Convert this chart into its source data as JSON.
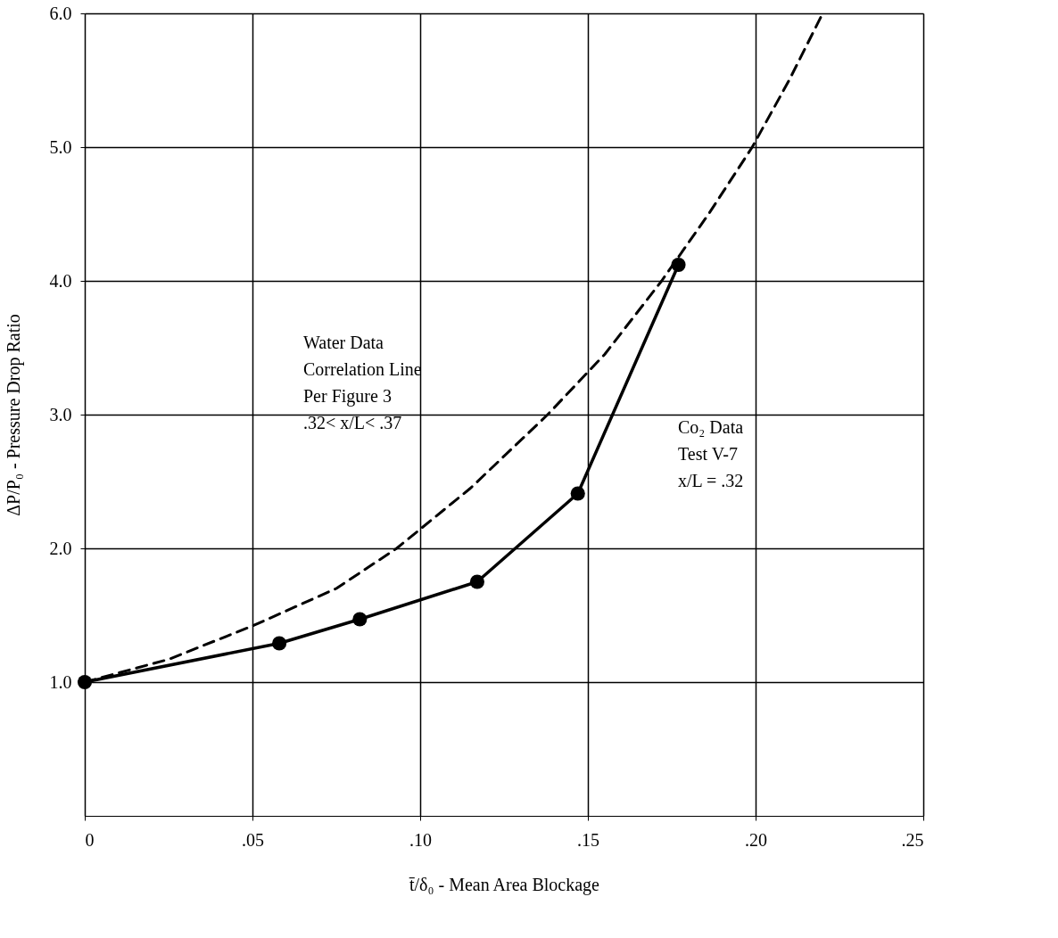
{
  "chart_data": {
    "type": "line",
    "xlabel": "t̄/δ₀ - Mean Area Blockage",
    "ylabel": "ΔP/P₀ - Pressure Drop Ratio",
    "xlim": [
      0,
      0.25
    ],
    "xticks": [
      0,
      {
        "value": 0.05,
        "label": ".05"
      },
      {
        "value": 0.1,
        "label": ".10"
      },
      {
        "value": 0.15,
        "label": ".15"
      },
      {
        "value": 0.2,
        "label": ".20"
      },
      {
        "value": 0.25,
        "label": ".25"
      }
    ],
    "ylim": [
      0,
      6
    ],
    "yticks": [
      {
        "value": 1,
        "label": "1.0"
      },
      {
        "value": 2,
        "label": "2.0"
      },
      {
        "value": 3,
        "label": "3.0"
      },
      {
        "value": 4,
        "label": "4.0"
      },
      {
        "value": 5,
        "label": "5.0"
      },
      {
        "value": 6,
        "label": "6.0"
      }
    ],
    "grid": true,
    "series": [
      {
        "color": "#000000",
        "line_style": "dashed",
        "marker": "none",
        "x": [
          0,
          0.025,
          0.05,
          0.075,
          0.093,
          0.115,
          0.138,
          0.155,
          0.172,
          0.186,
          0.199,
          0.21,
          0.22
        ],
        "values": [
          1.0,
          1.17,
          1.42,
          1.7,
          2.0,
          2.45,
          3.0,
          3.45,
          4.0,
          4.5,
          5.0,
          5.5,
          6.0
        ]
      },
      {
        "color": "#000000",
        "line_style": "solid",
        "marker": "circle",
        "x": [
          0,
          0.058,
          0.082,
          0.117,
          0.147,
          0.177
        ],
        "values": [
          1.0,
          1.29,
          1.47,
          1.75,
          2.41,
          4.12
        ]
      }
    ],
    "annotations": [
      "Water Data\nCorrelation Line\nPer Figure 3\n.32< x/L< .37",
      "Co₂ Data\nTest V-7\nx/L = .32"
    ]
  }
}
